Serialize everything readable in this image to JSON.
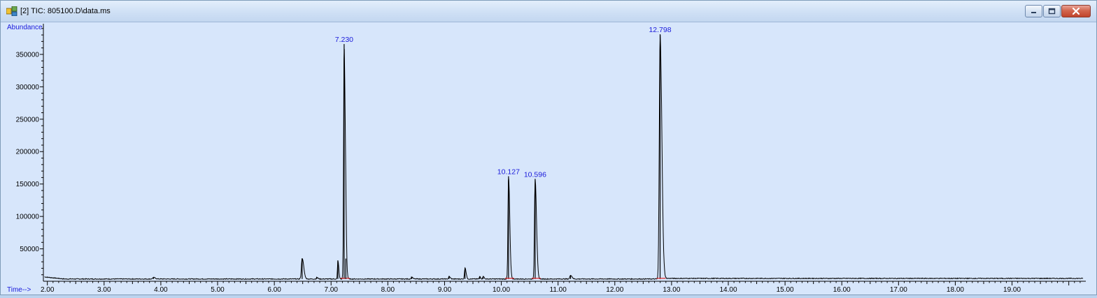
{
  "window": {
    "title": "[2] TIC: 805100.D\\data.ms",
    "buttons": [
      "minimize",
      "maximize",
      "close"
    ]
  },
  "colors": {
    "plot_background": "#d7e6fb",
    "trace": "#000000",
    "labels": "#1a1adb",
    "baseline_marks": "#e02020"
  },
  "chart_data": {
    "type": "line",
    "ylabel": "Abundance",
    "xlabel": "Time-->",
    "xlim": [
      1.93,
      20.3
    ],
    "ylim": [
      0,
      393000
    ],
    "x_ticks": [
      2,
      3,
      4,
      5,
      6,
      7,
      8,
      9,
      10,
      11,
      12,
      13,
      14,
      15,
      16,
      17,
      18,
      19
    ],
    "x_tick_labels": [
      "2.00",
      "3.00",
      "4.00",
      "5.00",
      "6.00",
      "7.00",
      "8.00",
      "9.00",
      "10.00",
      "11.00",
      "12.00",
      "13.00",
      "14.00",
      "15.00",
      "16.00",
      "17.00",
      "18.00",
      "19.00"
    ],
    "y_ticks": [
      50000,
      100000,
      150000,
      200000,
      250000,
      300000,
      350000
    ],
    "y_tick_labels": [
      "50000",
      "100000",
      "150000",
      "200000",
      "250000",
      "300000",
      "350000"
    ],
    "baseline": 3500,
    "peaks": [
      {
        "x": 3.87,
        "y": 5800,
        "width": 0.025,
        "label": ""
      },
      {
        "x": 6.49,
        "y": 35500,
        "width": 0.022,
        "label": ""
      },
      {
        "x": 6.75,
        "y": 6000,
        "width": 0.015,
        "label": ""
      },
      {
        "x": 7.12,
        "y": 32000,
        "width": 0.012,
        "label": ""
      },
      {
        "x": 7.23,
        "y": 366000,
        "width": 0.016,
        "label": "7.230"
      },
      {
        "x": 7.26,
        "y": 35000,
        "width": 0.012,
        "label": ""
      },
      {
        "x": 8.42,
        "y": 6500,
        "width": 0.015,
        "label": ""
      },
      {
        "x": 9.08,
        "y": 7500,
        "width": 0.015,
        "label": ""
      },
      {
        "x": 9.36,
        "y": 21000,
        "width": 0.015,
        "label": ""
      },
      {
        "x": 9.62,
        "y": 7500,
        "width": 0.012,
        "label": ""
      },
      {
        "x": 9.68,
        "y": 8000,
        "width": 0.012,
        "label": ""
      },
      {
        "x": 10.127,
        "y": 162000,
        "width": 0.017,
        "label": "10.127"
      },
      {
        "x": 10.596,
        "y": 158000,
        "width": 0.019,
        "label": "10.596"
      },
      {
        "x": 11.22,
        "y": 9500,
        "width": 0.02,
        "label": ""
      },
      {
        "x": 12.798,
        "y": 381000,
        "width": 0.024,
        "label": "12.798"
      }
    ]
  }
}
